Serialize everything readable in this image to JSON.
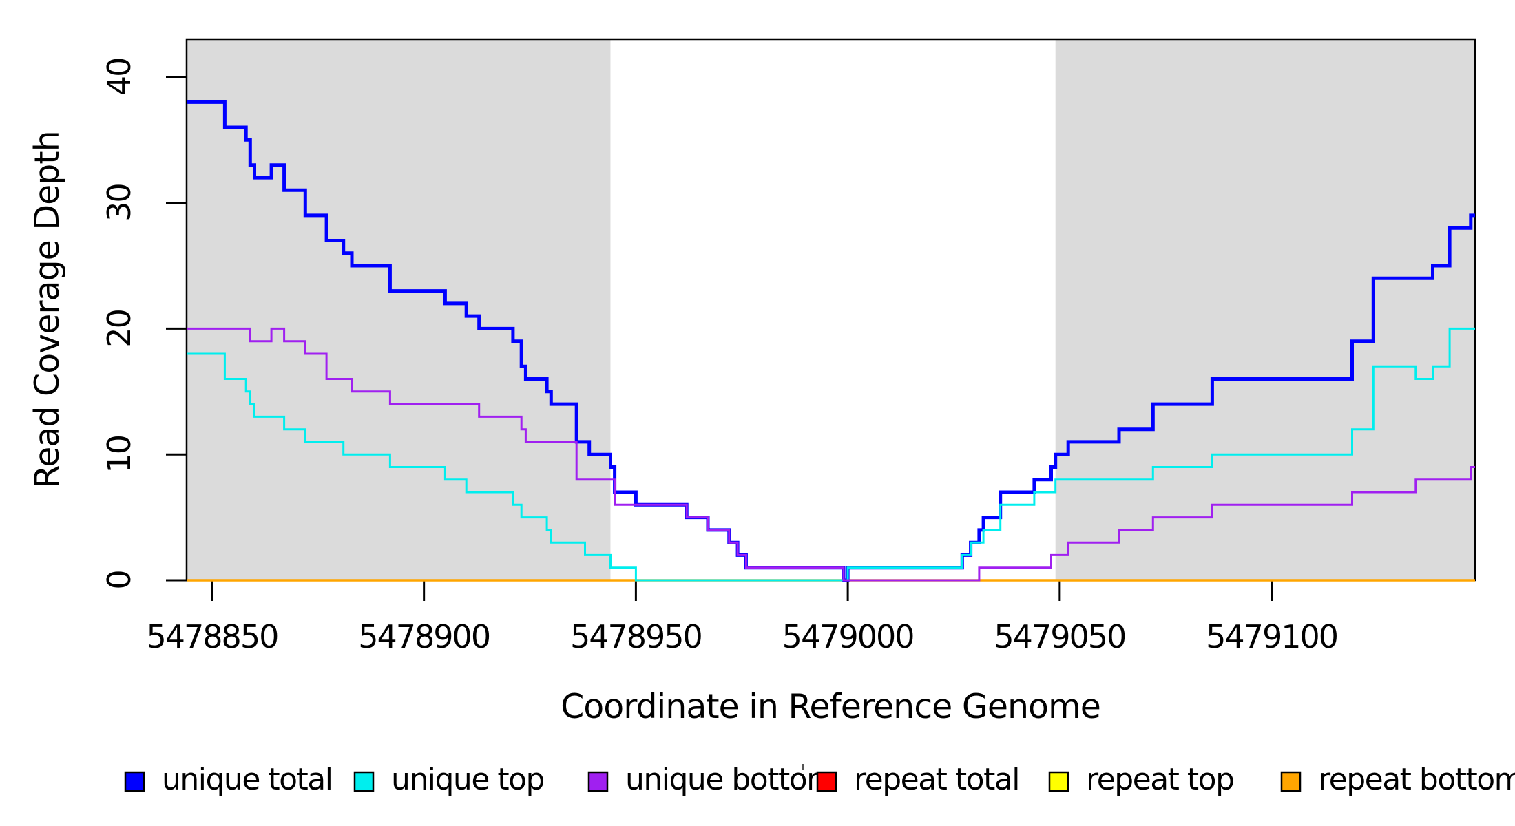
{
  "chart_data": {
    "type": "step-line",
    "title": "",
    "xlabel": "Coordinate in Reference Genome",
    "ylabel": "Read Coverage Depth",
    "x_domain": [
      5478844,
      5479148
    ],
    "y_domain": [
      0,
      43
    ],
    "x_ticks": [
      5478850,
      5478900,
      5478950,
      5479000,
      5479050,
      5479100
    ],
    "y_ticks": [
      0,
      10,
      20,
      30,
      40
    ],
    "grid": false,
    "legend_position": "bottom",
    "shaded_regions": [
      {
        "name": "shaded-region-left",
        "x0": 5478844,
        "x1": 5478944,
        "color": "#DBDBDB"
      },
      {
        "name": "shaded-region-right",
        "x0": 5479049,
        "x1": 5479148,
        "color": "#DBDBDB"
      }
    ],
    "series": [
      {
        "name": "repeat total",
        "color": "#FF0000",
        "line_width": 3,
        "steps": [
          [
            5478844,
            0
          ]
        ],
        "end": 5479148
      },
      {
        "name": "repeat top",
        "color": "#FFFF00",
        "line_width": 3,
        "steps": [
          [
            5478844,
            0
          ]
        ],
        "end": 5479148
      },
      {
        "name": "repeat bottom",
        "color": "#FFA500",
        "line_width": 3.5,
        "steps": [
          [
            5478844,
            0
          ]
        ],
        "end": 5479148
      },
      {
        "name": "unique total",
        "color": "#0000FF",
        "line_width": 5,
        "steps": [
          [
            5478844,
            38
          ],
          [
            5478853,
            36
          ],
          [
            5478858,
            35
          ],
          [
            5478859,
            33
          ],
          [
            5478860,
            32
          ],
          [
            5478864,
            33
          ],
          [
            5478867,
            31
          ],
          [
            5478872,
            29
          ],
          [
            5478877,
            27
          ],
          [
            5478881,
            26
          ],
          [
            5478883,
            25
          ],
          [
            5478892,
            23
          ],
          [
            5478905,
            22
          ],
          [
            5478910,
            21
          ],
          [
            5478913,
            20
          ],
          [
            5478921,
            19
          ],
          [
            5478923,
            17
          ],
          [
            5478924,
            16
          ],
          [
            5478929,
            15
          ],
          [
            5478930,
            14
          ],
          [
            5478936,
            11
          ],
          [
            5478939,
            10
          ],
          [
            5478944,
            9
          ],
          [
            5478945,
            7
          ],
          [
            5478950,
            6
          ],
          [
            5478962,
            5
          ],
          [
            5478967,
            4
          ],
          [
            5478972,
            3
          ],
          [
            5478974,
            2
          ],
          [
            5478976,
            1
          ],
          [
            5478999,
            0
          ],
          [
            5479000,
            1
          ],
          [
            5479027,
            2
          ],
          [
            5479029,
            3
          ],
          [
            5479031,
            4
          ],
          [
            5479032,
            5
          ],
          [
            5479036,
            7
          ],
          [
            5479044,
            8
          ],
          [
            5479048,
            9
          ],
          [
            5479049,
            10
          ],
          [
            5479052,
            11
          ],
          [
            5479064,
            12
          ],
          [
            5479072,
            14
          ],
          [
            5479086,
            16
          ],
          [
            5479119,
            19
          ],
          [
            5479124,
            24
          ],
          [
            5479138,
            25
          ],
          [
            5479142,
            28
          ],
          [
            5479147,
            29
          ]
        ],
        "end": 5479148
      },
      {
        "name": "unique top",
        "color": "#00EEEE",
        "line_width": 3,
        "steps": [
          [
            5478844,
            18
          ],
          [
            5478853,
            16
          ],
          [
            5478858,
            15
          ],
          [
            5478859,
            14
          ],
          [
            5478860,
            13
          ],
          [
            5478867,
            12
          ],
          [
            5478872,
            11
          ],
          [
            5478881,
            10
          ],
          [
            5478892,
            9
          ],
          [
            5478905,
            8
          ],
          [
            5478910,
            7
          ],
          [
            5478921,
            6
          ],
          [
            5478923,
            5
          ],
          [
            5478929,
            4
          ],
          [
            5478930,
            3
          ],
          [
            5478938,
            2
          ],
          [
            5478944,
            1
          ],
          [
            5478950,
            0
          ],
          [
            5479000,
            1
          ],
          [
            5479027,
            2
          ],
          [
            5479029,
            3
          ],
          [
            5479032,
            4
          ],
          [
            5479036,
            6
          ],
          [
            5479044,
            7
          ],
          [
            5479049,
            8
          ],
          [
            5479072,
            9
          ],
          [
            5479086,
            10
          ],
          [
            5479119,
            12
          ],
          [
            5479124,
            17
          ],
          [
            5479134,
            16
          ],
          [
            5479138,
            17
          ],
          [
            5479142,
            20
          ]
        ],
        "end": 5479148
      },
      {
        "name": "unique bottom",
        "color": "#A020F0",
        "line_width": 3,
        "steps": [
          [
            5478844,
            20
          ],
          [
            5478859,
            19
          ],
          [
            5478864,
            20
          ],
          [
            5478867,
            19
          ],
          [
            5478872,
            18
          ],
          [
            5478877,
            16
          ],
          [
            5478883,
            15
          ],
          [
            5478892,
            14
          ],
          [
            5478913,
            13
          ],
          [
            5478923,
            12
          ],
          [
            5478924,
            11
          ],
          [
            5478936,
            8
          ],
          [
            5478945,
            6
          ],
          [
            5478962,
            5
          ],
          [
            5478967,
            4
          ],
          [
            5478972,
            3
          ],
          [
            5478974,
            2
          ],
          [
            5478976,
            1
          ],
          [
            5478999,
            0
          ],
          [
            5479031,
            1
          ],
          [
            5479048,
            2
          ],
          [
            5479052,
            3
          ],
          [
            5479064,
            4
          ],
          [
            5479072,
            5
          ],
          [
            5479086,
            6
          ],
          [
            5479119,
            7
          ],
          [
            5479134,
            8
          ],
          [
            5479147,
            9
          ]
        ],
        "end": 5479148
      }
    ]
  },
  "legend": {
    "items": [
      {
        "label": "unique total",
        "color": "#0000FF"
      },
      {
        "label": "unique top",
        "color": "#00EEEE"
      },
      {
        "label": "unique bottom",
        "color": "#A020F0"
      },
      {
        "label": "repeat total",
        "color": "#FF0000"
      },
      {
        "label": "repeat top",
        "color": "#FFFF00"
      },
      {
        "label": "repeat bottom",
        "color": "#FFA500"
      }
    ]
  }
}
